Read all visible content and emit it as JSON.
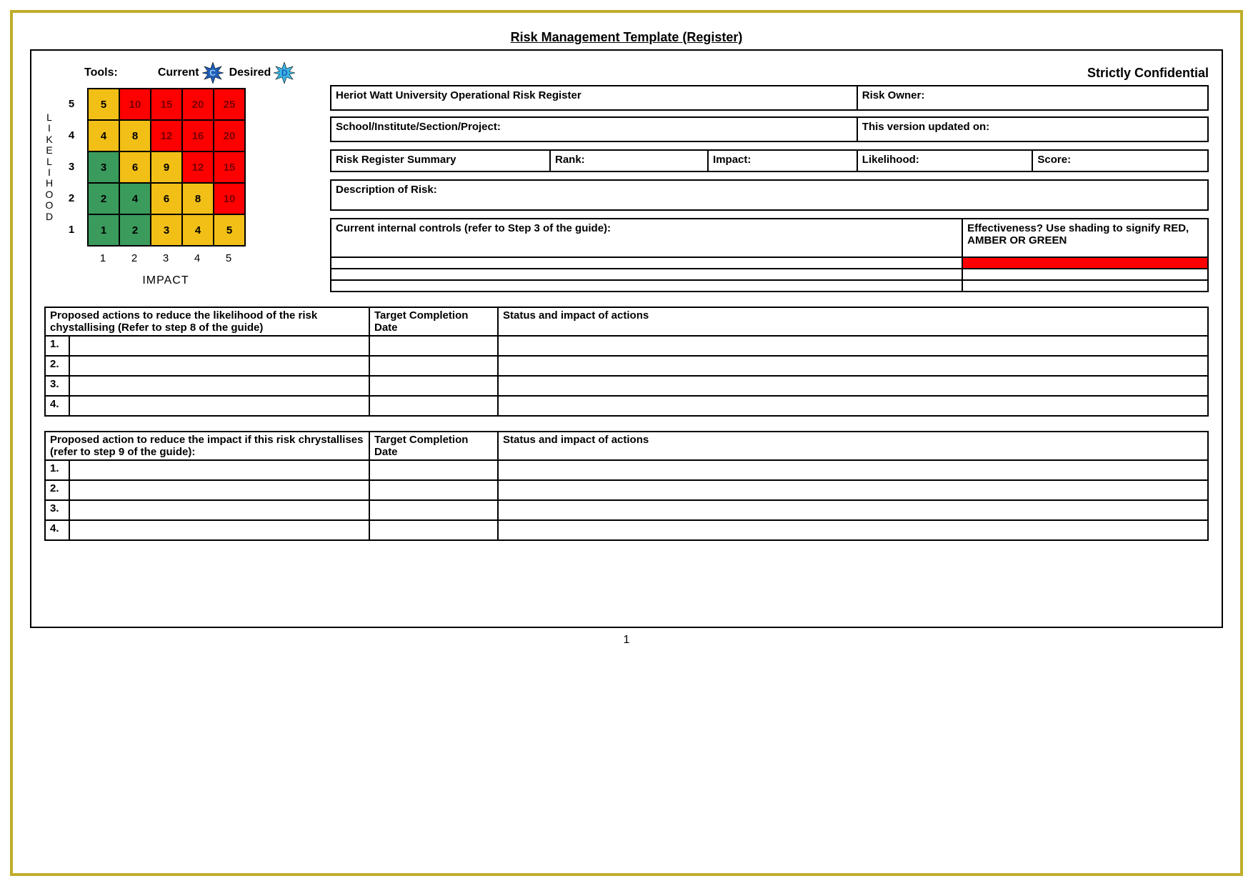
{
  "page": {
    "title": "Risk Management Template (Register)",
    "number": "1",
    "confidential": "Strictly Confidential"
  },
  "tools": {
    "label": "Tools:",
    "current_label": "Current",
    "current_letter": "C",
    "desired_label": "Desired",
    "desired_letter": "D",
    "star_current_color": "#1e5db8",
    "star_current_text": "#9ccef0",
    "star_desired_color": "#39b6e6",
    "star_desired_text": "#1e5db8"
  },
  "matrix": {
    "y_axis_label": "LIKELIHOOD",
    "x_axis_label": "IMPACT",
    "y_ticks": [
      "5",
      "4",
      "3",
      "2",
      "1"
    ],
    "x_ticks": [
      "1",
      "2",
      "3",
      "4",
      "5"
    ],
    "cells": [
      [
        {
          "v": "5",
          "c": "#f2bf16"
        },
        {
          "v": "10",
          "c": "#ff0000",
          "t": "#7a0000"
        },
        {
          "v": "15",
          "c": "#ff0000",
          "t": "#7a0000"
        },
        {
          "v": "20",
          "c": "#ff0000",
          "t": "#7a0000"
        },
        {
          "v": "25",
          "c": "#ff0000",
          "t": "#7a0000"
        }
      ],
      [
        {
          "v": "4",
          "c": "#f2bf16"
        },
        {
          "v": "8",
          "c": "#f2bf16"
        },
        {
          "v": "12",
          "c": "#ff0000",
          "t": "#7a0000"
        },
        {
          "v": "16",
          "c": "#ff0000",
          "t": "#7a0000"
        },
        {
          "v": "20",
          "c": "#ff0000",
          "t": "#7a0000"
        }
      ],
      [
        {
          "v": "3",
          "c": "#3a9b5c"
        },
        {
          "v": "6",
          "c": "#f2bf16"
        },
        {
          "v": "9",
          "c": "#f2bf16"
        },
        {
          "v": "12",
          "c": "#ff0000",
          "t": "#7a0000"
        },
        {
          "v": "15",
          "c": "#ff0000",
          "t": "#7a0000"
        }
      ],
      [
        {
          "v": "2",
          "c": "#3a9b5c"
        },
        {
          "v": "4",
          "c": "#3a9b5c"
        },
        {
          "v": "6",
          "c": "#f2bf16"
        },
        {
          "v": "8",
          "c": "#f2bf16"
        },
        {
          "v": "10",
          "c": "#ff0000",
          "t": "#7a0000"
        }
      ],
      [
        {
          "v": "1",
          "c": "#3a9b5c"
        },
        {
          "v": "2",
          "c": "#3a9b5c"
        },
        {
          "v": "3",
          "c": "#f2bf16"
        },
        {
          "v": "4",
          "c": "#f2bf16"
        },
        {
          "v": "5",
          "c": "#f2bf16"
        }
      ]
    ],
    "colors": {
      "green": "#3a9b5c",
      "amber": "#f2bf16",
      "red": "#ff0000",
      "red_text": "#7a0000"
    }
  },
  "form": {
    "header_left": "Heriot Watt University Operational Risk Register",
    "header_right": "Risk Owner:",
    "school_left": "School/Institute/Section/Project:",
    "school_right": "This version updated on:",
    "summary": {
      "label": "Risk Register Summary",
      "rank": "Rank:",
      "impact": "Impact:",
      "likelihood": "Likelihood:",
      "score": "Score:"
    },
    "description_label": "Description of Risk:",
    "controls_label": "Current internal controls (refer to Step 3 of the guide):",
    "effectiveness_label": "Effectiveness? Use shading to signify RED, AMBER OR GREEN",
    "effectiveness_fill": "#ff0000"
  },
  "actions_likelihood": {
    "col1": "Proposed actions to reduce the likelihood of the risk chystallising (Refer to step 8 of the guide)",
    "col2": "Target Completion Date",
    "col3": "Status and impact of actions",
    "rows": [
      "1.",
      "2.",
      "3.",
      "4."
    ]
  },
  "actions_impact": {
    "col1": "Proposed action to reduce the impact if this risk chrystallises (refer to step 9 of the guide):",
    "col2": "Target Completion Date",
    "col3": "Status and impact of actions",
    "rows": [
      "1.",
      "2.",
      "3.",
      "4."
    ]
  },
  "layout": {
    "frame_color": "#c0ad2a",
    "col_widths_actions": {
      "num": "34px",
      "col1": "420px",
      "col2": "180px"
    }
  }
}
